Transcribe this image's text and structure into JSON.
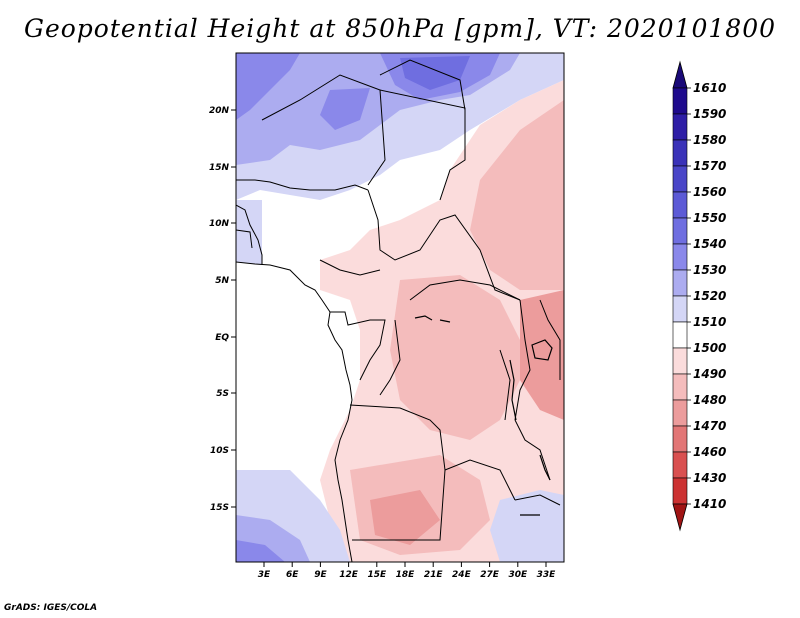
{
  "title": "Geopotential Height at 850hPa [gpm], VT: 2020101800",
  "footer": "GrADS: IGES/COLA",
  "map": {
    "lat_labels": [
      "20N",
      "15N",
      "10N",
      "5N",
      "EQ",
      "5S",
      "10S",
      "15S"
    ],
    "lon_labels": [
      "3E",
      "6E",
      "9E",
      "12E",
      "15E",
      "18E",
      "21E",
      "24E",
      "27E",
      "30E",
      "33E"
    ]
  },
  "colorbar": {
    "levels": [
      {
        "label": "1610",
        "color": "#1e0a8c"
      },
      {
        "label": "1590",
        "color": "#2e1ea6"
      },
      {
        "label": "1580",
        "color": "#3a32b8"
      },
      {
        "label": "1570",
        "color": "#4a46c8"
      },
      {
        "label": "1560",
        "color": "#5c5ad6"
      },
      {
        "label": "1550",
        "color": "#6f6ee0"
      },
      {
        "label": "1540",
        "color": "#8a88ea"
      },
      {
        "label": "1530",
        "color": "#acacf0"
      },
      {
        "label": "1520",
        "color": "#d4d6f6"
      },
      {
        "label": "1510",
        "color": "#ffffff"
      },
      {
        "label": "1500",
        "color": "#fbdcdc"
      },
      {
        "label": "1490",
        "color": "#f4bcbc"
      },
      {
        "label": "1480",
        "color": "#ec9c9c"
      },
      {
        "label": "1470",
        "color": "#e27676"
      },
      {
        "label": "1460",
        "color": "#d95050"
      },
      {
        "label": "1430",
        "color": "#cc3232"
      },
      {
        "label": "1410",
        "color": "#b81e1e"
      }
    ],
    "top_arrow_color": "#1a0a78",
    "bottom_arrow_color": "#a01414"
  }
}
